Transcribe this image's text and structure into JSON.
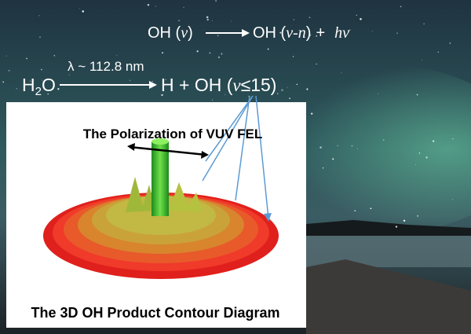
{
  "equation_emission": {
    "reactant": "OH (",
    "reactant_state": "v",
    "reactant_close": ")",
    "product": "OH (",
    "product_state": "v-n",
    "product_close": ")",
    "plus": "+",
    "photon": "hv"
  },
  "equation_photodissociation": {
    "wavelength": "λ ~ 112.8 nm",
    "reactant_main": "H",
    "reactant_subscript": "2",
    "reactant_end": "O",
    "products": "H + OH (",
    "products_state": "v",
    "products_limit": "≤15)"
  },
  "figure": {
    "polarization_label": "The Polarization of VUV FEL",
    "caption": "The 3D OH Product Contour Diagram"
  }
}
